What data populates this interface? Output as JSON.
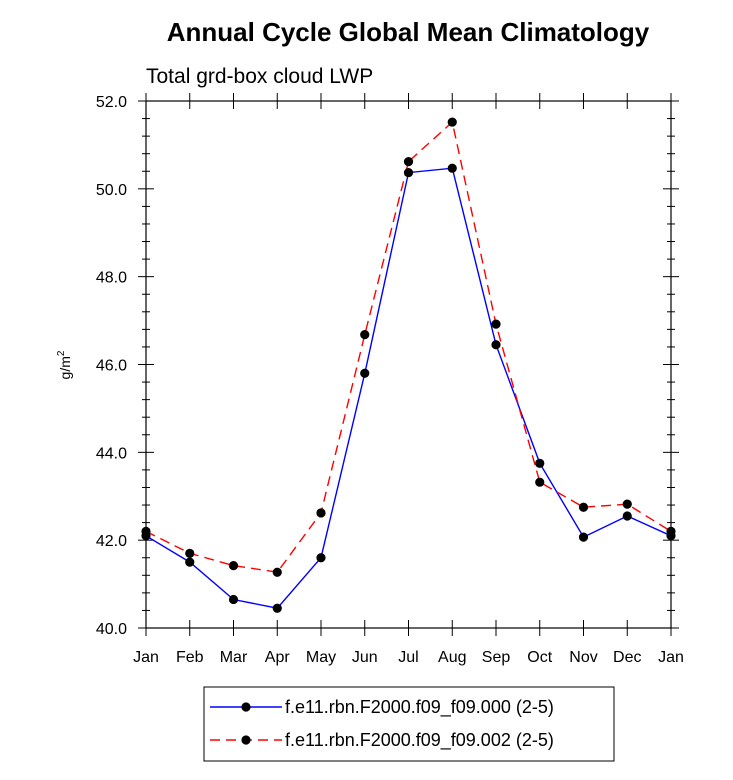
{
  "chart_data": {
    "type": "line",
    "title": "Annual Cycle Global Mean Climatology",
    "subtitle": "Total grd-box cloud LWP",
    "ylabel_main": "g/m",
    "ylabel_sup": "2",
    "xlabel": "",
    "categories": [
      "Jan",
      "Feb",
      "Mar",
      "Apr",
      "May",
      "Jun",
      "Jul",
      "Aug",
      "Sep",
      "Oct",
      "Nov",
      "Dec",
      "Jan"
    ],
    "ylim": [
      40.0,
      52.0
    ],
    "yticks": [
      "40.0",
      "42.0",
      "44.0",
      "46.0",
      "48.0",
      "50.0",
      "52.0"
    ],
    "grid": false,
    "legend_position": "bottom-center",
    "series": [
      {
        "name": "f.e11.rbn.F2000.f09_f09.000 (2-5)",
        "color": "#0000ff",
        "dash": "solid",
        "values": [
          42.1,
          41.5,
          40.65,
          40.45,
          41.6,
          45.8,
          50.37,
          50.47,
          46.45,
          43.75,
          42.07,
          42.55,
          42.1
        ]
      },
      {
        "name": "f.e11.rbn.F2000.f09_f09.002 (2-5)",
        "color": "#ff0000",
        "dash": "dashed",
        "values": [
          42.2,
          41.7,
          41.42,
          41.27,
          42.62,
          46.68,
          50.62,
          51.52,
          46.92,
          43.32,
          42.75,
          42.82,
          42.2
        ]
      }
    ]
  }
}
